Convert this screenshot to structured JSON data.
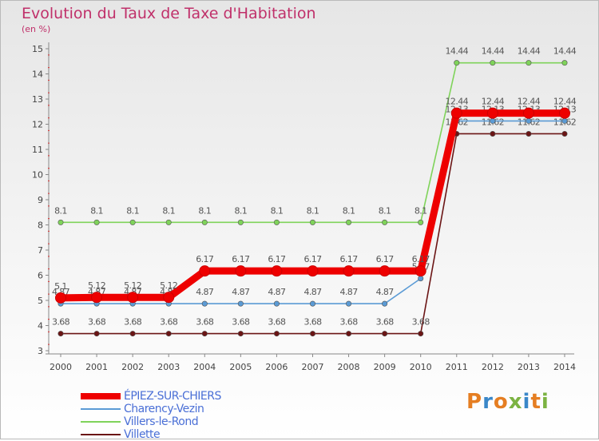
{
  "title": "Evolution du Taux de Taxe d'Habitation",
  "unit": "(en %)",
  "chart_data": {
    "type": "line",
    "title": "Evolution du Taux de Taxe d'Habitation",
    "ylabel": "(en %)",
    "xlabel": "",
    "ylim": [
      3,
      15
    ],
    "x": [
      "2000",
      "2001",
      "2002",
      "2003",
      "2004",
      "2005",
      "2006",
      "2007",
      "2008",
      "2009",
      "2010",
      "2011",
      "2012",
      "2013",
      "2014"
    ],
    "yticks": [
      "3",
      "4",
      "5",
      "6",
      "7",
      "8",
      "9",
      "10",
      "11",
      "12",
      "13",
      "14",
      "15"
    ],
    "grid": false,
    "legend_position": "bottom-left",
    "series": [
      {
        "name": "Villette",
        "color": "#6b1515",
        "values": [
          3.68,
          3.68,
          3.68,
          3.68,
          3.68,
          3.68,
          3.68,
          3.68,
          3.68,
          3.68,
          3.68,
          11.62,
          11.62,
          11.62,
          11.62
        ],
        "labels": [
          "3.68",
          "3.68",
          "3.68",
          "3.68",
          "3.68",
          "3.68",
          "3.68",
          "3.68",
          "3.68",
          "3.68",
          "3.68",
          "11.62",
          "11.62",
          "11.62",
          "11.62"
        ]
      },
      {
        "name": "Villers-le-Rond",
        "color": "#7fd35a",
        "values": [
          8.1,
          8.1,
          8.1,
          8.1,
          8.1,
          8.1,
          8.1,
          8.1,
          8.1,
          8.1,
          8.1,
          14.44,
          14.44,
          14.44,
          14.44
        ],
        "labels": [
          "8.1",
          "8.1",
          "8.1",
          "8.1",
          "8.1",
          "8.1",
          "8.1",
          "8.1",
          "8.1",
          "8.1",
          "8.1",
          "14.44",
          "14.44",
          "14.44",
          "14.44"
        ]
      },
      {
        "name": "Charency-Vezin",
        "color": "#5b9bd5",
        "values": [
          4.87,
          4.87,
          4.87,
          4.87,
          4.87,
          4.87,
          4.87,
          4.87,
          4.87,
          4.87,
          5.87,
          12.13,
          12.13,
          12.13,
          12.13
        ],
        "labels": [
          "4.87",
          "4.87",
          "4.87",
          "4.87",
          "4.87",
          "4.87",
          "4.87",
          "4.87",
          "4.87",
          "4.87",
          "5.87",
          "12.13",
          "12.13",
          "12.13",
          "12.13"
        ]
      },
      {
        "name": "ÉPIEZ-SUR-CHIERS",
        "color": "#ee0000",
        "values": [
          5.1,
          5.12,
          5.12,
          5.12,
          6.17,
          6.17,
          6.17,
          6.17,
          6.17,
          6.17,
          6.17,
          12.44,
          12.44,
          12.44,
          12.44
        ],
        "labels": [
          "5.1",
          "5.12",
          "5.12",
          "5.12",
          "6.17",
          "6.17",
          "6.17",
          "6.17",
          "6.17",
          "6.17",
          "6.17",
          "12.44",
          "12.44",
          "12.44",
          "12.44"
        ]
      }
    ]
  },
  "legend": [
    {
      "name": "ÉPIEZ-SUR-CHIERS",
      "color": "#ee0000",
      "thickness": 8
    },
    {
      "name": "Charency-Vezin",
      "color": "#5b9bd5",
      "thickness": 2
    },
    {
      "name": "Villers-le-Rond",
      "color": "#7fd35a",
      "thickness": 2
    },
    {
      "name": "Villette",
      "color": "#6b1515",
      "thickness": 2
    }
  ],
  "logo": {
    "text": "Proxiti",
    "colors": [
      "#e57e22",
      "#3a87c8",
      "#e57e22",
      "#7cb342",
      "#3a87c8",
      "#e57e22",
      "#7cb342"
    ]
  }
}
